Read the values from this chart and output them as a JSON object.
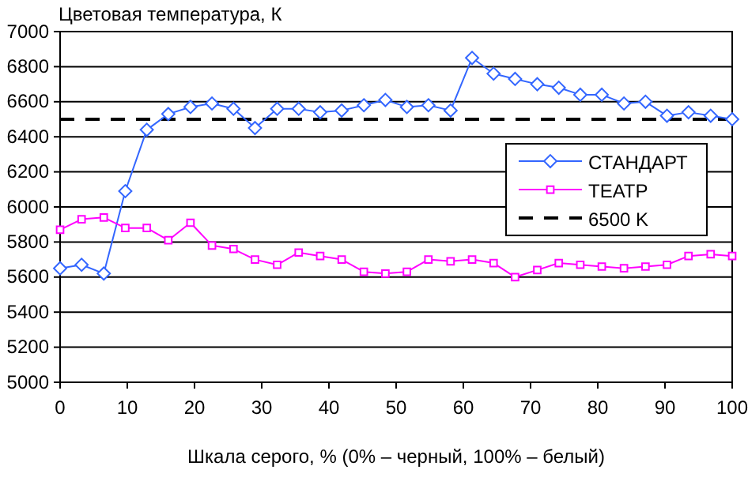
{
  "chart_data": {
    "type": "line",
    "ylabel": "Цветовая температура, К",
    "xlabel": "Шкала серого, % (0% – черный, 100% – белый)",
    "x": [
      0,
      3.2,
      6.5,
      9.7,
      12.9,
      16.1,
      19.4,
      22.6,
      25.8,
      29,
      32.3,
      35.5,
      38.7,
      41.9,
      45.2,
      48.4,
      51.6,
      54.8,
      58.1,
      61.3,
      64.5,
      67.7,
      71,
      74.2,
      77.4,
      80.6,
      83.9,
      87.1,
      90.3,
      93.5,
      96.8,
      100
    ],
    "series": [
      {
        "name": "СТАНДАРТ",
        "color": "#3366ff",
        "marker": "diamond",
        "values": [
          5650,
          5670,
          5620,
          6090,
          6440,
          6530,
          6570,
          6590,
          6560,
          6450,
          6560,
          6560,
          6540,
          6550,
          6580,
          6610,
          6570,
          6580,
          6550,
          6850,
          6760,
          6730,
          6700,
          6680,
          6640,
          6640,
          6590,
          6600,
          6520,
          6540,
          6520,
          6500
        ]
      },
      {
        "name": "ТЕАТР",
        "color": "#ff00ff",
        "marker": "square",
        "values": [
          5870,
          5930,
          5940,
          5880,
          5880,
          5810,
          5910,
          5780,
          5760,
          5700,
          5670,
          5740,
          5720,
          5700,
          5630,
          5620,
          5630,
          5700,
          5690,
          5700,
          5680,
          5600,
          5640,
          5680,
          5670,
          5660,
          5650,
          5660,
          5670,
          5720,
          5730,
          5720
        ]
      }
    ],
    "ref_lines": [
      {
        "axis": "y",
        "value": 6500,
        "label": "6500 K",
        "color": "#000000",
        "line_style": "dashed"
      }
    ],
    "xlim": [
      0,
      100
    ],
    "xticks": [
      0,
      10,
      20,
      30,
      40,
      50,
      60,
      70,
      80,
      90,
      100
    ],
    "ylim": [
      5000,
      7000
    ],
    "yticks": [
      5000,
      5200,
      5400,
      5600,
      5800,
      6000,
      6200,
      6400,
      6600,
      6800,
      7000
    ],
    "grid": "y",
    "legend": "right"
  }
}
